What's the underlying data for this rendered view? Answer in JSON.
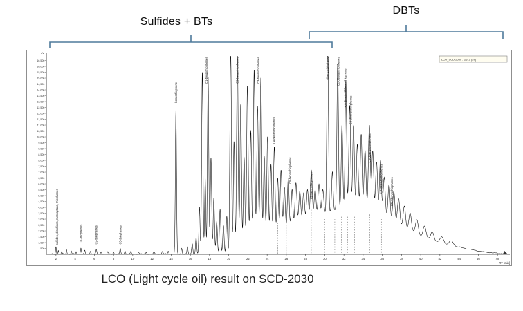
{
  "page": {
    "caption": "LCO (Light cycle oil) result on SCD-2030"
  },
  "annotations": {
    "bracket_color": "#4e7a9b",
    "sulfides_bts": {
      "label": "Sulfides + BTs"
    },
    "dbts": {
      "label": "DBTs"
    }
  },
  "chart_data": {
    "type": "line",
    "title": "LCO (Light cycle oil) result on SCD-2030",
    "xlabel": "RT [min]",
    "ylabel": "uV",
    "legend": "LCO_SCD-2030 : Det.1 [uV]",
    "xlim": [
      1,
      49
    ],
    "ylim": [
      0,
      17000
    ],
    "x_tick_step": 2,
    "y_tick_step": 500,
    "trace_color": "#000000",
    "peaks": [
      [
        2.0,
        650,
        0.04
      ],
      [
        2.25,
        300,
        0.04
      ],
      [
        2.6,
        200,
        0.04
      ],
      [
        3.1,
        380,
        0.04
      ],
      [
        3.6,
        250,
        0.04
      ],
      [
        4.1,
        200,
        0.04
      ],
      [
        4.6,
        520,
        0.05
      ],
      [
        5.0,
        300,
        0.05
      ],
      [
        5.6,
        260,
        0.05
      ],
      [
        6.2,
        380,
        0.05
      ],
      [
        6.7,
        220,
        0.05
      ],
      [
        7.4,
        180,
        0.05
      ],
      [
        8.0,
        160,
        0.05
      ],
      [
        8.7,
        450,
        0.05
      ],
      [
        9.2,
        260,
        0.05
      ],
      [
        9.8,
        200,
        0.05
      ],
      [
        10.6,
        170,
        0.05
      ],
      [
        11.4,
        140,
        0.06
      ],
      [
        12.2,
        170,
        0.06
      ],
      [
        13.1,
        220,
        0.06
      ],
      [
        13.7,
        260,
        0.05
      ],
      [
        14.5,
        12300,
        0.06
      ],
      [
        15.1,
        500,
        0.05
      ],
      [
        15.7,
        600,
        0.05
      ],
      [
        16.2,
        900,
        0.06
      ],
      [
        16.6,
        1400,
        0.06
      ],
      [
        16.95,
        4000,
        0.06
      ],
      [
        17.25,
        15600,
        0.07
      ],
      [
        17.55,
        6500,
        0.06
      ],
      [
        17.85,
        15200,
        0.07
      ],
      [
        18.15,
        8200,
        0.07
      ],
      [
        18.45,
        4800,
        0.07
      ],
      [
        18.75,
        2800,
        0.07
      ],
      [
        19.1,
        3800,
        0.07
      ],
      [
        19.45,
        2400,
        0.07
      ],
      [
        19.8,
        3200,
        0.07
      ],
      [
        20.2,
        17600,
        0.08
      ],
      [
        20.55,
        9500,
        0.07
      ],
      [
        20.9,
        17400,
        0.08
      ],
      [
        21.25,
        12500,
        0.08
      ],
      [
        21.6,
        7800,
        0.08
      ],
      [
        21.95,
        13800,
        0.08
      ],
      [
        22.3,
        9800,
        0.08
      ],
      [
        22.65,
        14800,
        0.08
      ],
      [
        23.0,
        11500,
        0.08
      ],
      [
        23.35,
        13900,
        0.08
      ],
      [
        23.7,
        7000,
        0.08
      ],
      [
        24.05,
        8600,
        0.08
      ],
      [
        24.4,
        6200,
        0.08
      ],
      [
        24.75,
        7600,
        0.08
      ],
      [
        25.1,
        4800,
        0.08
      ],
      [
        25.45,
        5400,
        0.09
      ],
      [
        25.8,
        3800,
        0.09
      ],
      [
        26.2,
        4400,
        0.09
      ],
      [
        26.6,
        3300,
        0.09
      ],
      [
        27.0,
        3700,
        0.1
      ],
      [
        27.4,
        2800,
        0.1
      ],
      [
        27.8,
        2500,
        0.1
      ],
      [
        28.2,
        2700,
        0.1
      ],
      [
        28.6,
        4200,
        0.1
      ],
      [
        29.0,
        2400,
        0.1
      ],
      [
        29.4,
        2800,
        0.1
      ],
      [
        29.8,
        2200,
        0.1
      ],
      [
        30.3,
        15800,
        0.08
      ],
      [
        30.8,
        3400,
        0.08
      ],
      [
        31.35,
        12500,
        0.08
      ],
      [
        31.8,
        7200,
        0.08
      ],
      [
        32.2,
        10800,
        0.08
      ],
      [
        32.6,
        8700,
        0.09
      ],
      [
        33.0,
        7000,
        0.09
      ],
      [
        33.4,
        5400,
        0.09
      ],
      [
        33.8,
        6300,
        0.09
      ],
      [
        34.2,
        5100,
        0.1
      ],
      [
        34.65,
        7300,
        0.1
      ],
      [
        35.0,
        5200,
        0.1
      ],
      [
        35.4,
        4400,
        0.1
      ],
      [
        35.8,
        4700,
        0.1
      ],
      [
        36.2,
        3400,
        0.11
      ],
      [
        36.7,
        3000,
        0.11
      ],
      [
        37.2,
        2600,
        0.11
      ],
      [
        37.7,
        2200,
        0.12
      ],
      [
        38.3,
        1800,
        0.12
      ],
      [
        38.9,
        1500,
        0.13
      ],
      [
        39.6,
        1200,
        0.14
      ],
      [
        40.4,
        950,
        0.15
      ],
      [
        41.2,
        750,
        0.16
      ],
      [
        42.2,
        550,
        0.18
      ],
      [
        43.2,
        400,
        0.2
      ],
      [
        23.5,
        900,
        1.5
      ],
      [
        27.0,
        1500,
        2.0
      ],
      [
        31.0,
        2600,
        2.6
      ],
      [
        34.5,
        2300,
        2.5
      ],
      [
        38.0,
        1300,
        2.2
      ],
      [
        41.5,
        600,
        2.2
      ],
      [
        44.5,
        250,
        2.0
      ]
    ],
    "peak_labels": [
      {
        "rt": 2.1,
        "text": "sulfides, disulfides, mercaptans, thiophenes",
        "anchor": 800,
        "dir": "up"
      },
      {
        "rt": 4.6,
        "text": "C1-thiophenes",
        "anchor": 950,
        "dir": "up"
      },
      {
        "rt": 6.2,
        "text": "C2-thiophenes",
        "anchor": 850,
        "dir": "up"
      },
      {
        "rt": 8.7,
        "text": "C3-thiophenes",
        "anchor": 850,
        "dir": "up"
      },
      {
        "rt": 14.5,
        "text": "benzothiophene",
        "anchor": 12900,
        "dir": "up"
      },
      {
        "rt": 17.7,
        "text": "C1-benzothiophenes",
        "anchor": 16800,
        "dir": "down"
      },
      {
        "rt": 20.9,
        "text": "C2-benzothiophenes",
        "anchor": 16800,
        "dir": "down"
      },
      {
        "rt": 23.1,
        "text": "C3-benzothiophenes",
        "anchor": 16800,
        "dir": "down"
      },
      {
        "rt": 24.7,
        "text": "C4-benzothiophenes",
        "anchor": 9400,
        "dir": "up"
      },
      {
        "rt": 26.4,
        "text": "C5-benzothiophenes",
        "anchor": 6000,
        "dir": "up"
      },
      {
        "rt": 28.6,
        "text": "C6-benzothiophenes",
        "anchor": 4700,
        "dir": "up"
      },
      {
        "rt": 30.3,
        "text": "dibenzothiophene",
        "anchor": 16800,
        "dir": "down"
      },
      {
        "rt": 31.4,
        "text": "C1-dibenzothiophenes",
        "anchor": 16800,
        "dir": "down"
      },
      {
        "rt": 32.15,
        "text": "4,6-dimethyldibenzothiophene",
        "anchor": 15800,
        "dir": "down"
      },
      {
        "rt": 32.7,
        "text": "C2-dibenzothiophenes",
        "anchor": 13500,
        "dir": "down"
      },
      {
        "rt": 34.7,
        "text": "C3-dibenzothiophenes",
        "anchor": 7800,
        "dir": "up"
      },
      {
        "rt": 35.9,
        "text": "C4-dibenzothiophenes",
        "anchor": 5200,
        "dir": "up"
      },
      {
        "rt": 37.0,
        "text": "C5-dibenzothiophenes",
        "anchor": 4100,
        "dir": "up"
      }
    ],
    "leader_lines": [
      {
        "rt": 24.3,
        "top": 2900
      },
      {
        "rt": 25.1,
        "top": 2700
      },
      {
        "rt": 26.0,
        "top": 2500
      },
      {
        "rt": 26.9,
        "top": 2400
      },
      {
        "rt": 28.6,
        "top": 3800
      },
      {
        "rt": 30.0,
        "top": 3000
      },
      {
        "rt": 30.65,
        "top": 3000
      },
      {
        "rt": 31.05,
        "top": 3000
      },
      {
        "rt": 31.75,
        "top": 3200
      },
      {
        "rt": 32.4,
        "top": 3200
      },
      {
        "rt": 33.1,
        "top": 3200
      },
      {
        "rt": 34.7,
        "top": 3400
      },
      {
        "rt": 35.9,
        "top": 3000
      },
      {
        "rt": 37.0,
        "top": 2800
      }
    ]
  }
}
